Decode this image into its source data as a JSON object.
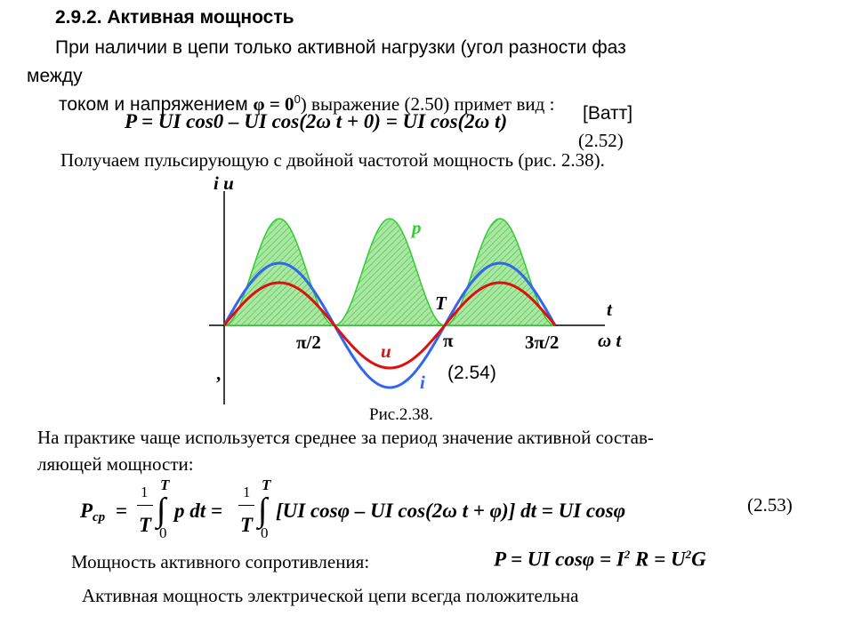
{
  "heading": "2.9.2. Активная мощность",
  "intro": {
    "line1": "При наличии в цепи только активной нагрузки (угол разности фаз",
    "line2": "между",
    "line3a": "током и напряжением ",
    "phi": "φ = 0",
    "deg": "0",
    "line3b": ") выражение (2.50)  примет вид :"
  },
  "formula1": {
    "text": "P = UI  cos0 – UI cos(2ω t + 0) = UI cos(2ω t)",
    "unit": "[Ватт]",
    "number": "(2.52)"
  },
  "pulsating": "Получаем пульсирующую с двойной частотой мощность (рис. 2.38).",
  "figure": {
    "axis_y": "i  u",
    "p": "p",
    "T": "T",
    "t": "t",
    "half_pi": "π/2",
    "pi": "π",
    "three_half_pi": "3π/2",
    "omega_t": "ω t",
    "u": "u",
    "i": "i",
    "equation": "(2.54)",
    "comma": ",",
    "caption": "Рис.2.38."
  },
  "practice": {
    "line1": "На практике чаще используется среднее за период значение активной состав-",
    "line2": "ляющей мощности:"
  },
  "formula2": {
    "P": "P",
    "sub": "ср",
    "eq": "=",
    "one1": "1",
    "T1": "T",
    "upper1": "T",
    "lower1": "0",
    "mid": "p dt =",
    "one2": "1",
    "T2": "T",
    "upper2": "T",
    "lower2": "0",
    "rest": "[UI   cosφ – UI cos(2ω t + φ)] dt = UI cosφ",
    "number": "(2.53)"
  },
  "resistance": {
    "label": "Мощность активного сопротивления:",
    "f1": "P = UI cosφ = I",
    "sq1": "2",
    "f2": "R = U",
    "sq2": "2",
    "f3": "G"
  },
  "conclusion": "Активная мощность электрической цепи всегда положительна"
}
